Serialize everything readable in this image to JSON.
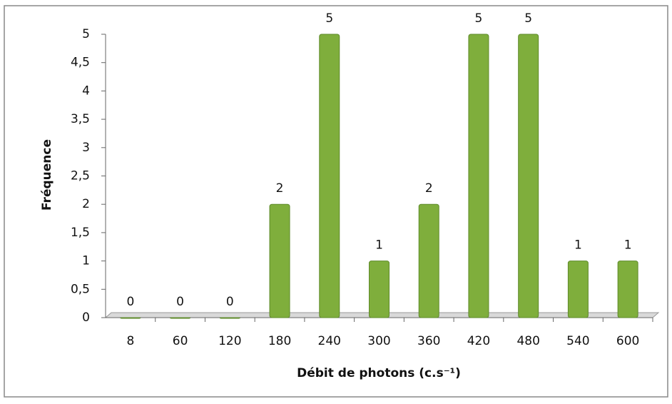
{
  "chart_data": {
    "type": "bar",
    "xlabel": "Débit de photons (c.s⁻¹)",
    "ylabel": "Fréquence",
    "categories": [
      "8",
      "60",
      "120",
      "180",
      "240",
      "300",
      "360",
      "420",
      "480",
      "540",
      "600"
    ],
    "values": [
      0,
      0,
      0,
      2,
      5,
      1,
      2,
      5,
      5,
      1,
      1
    ],
    "color": "#7fae3c",
    "ylim": [
      0,
      5
    ],
    "yticks": [
      0,
      {
        "value": 0.5,
        "label": "0,5"
      },
      1,
      {
        "value": 1.5,
        "label": "1,5"
      },
      2,
      {
        "value": 2.5,
        "label": "2,5"
      },
      3,
      {
        "value": 3.5,
        "label": "3,5"
      },
      4,
      {
        "value": 4.5,
        "label": "4,5"
      },
      5
    ],
    "grid": false
  }
}
